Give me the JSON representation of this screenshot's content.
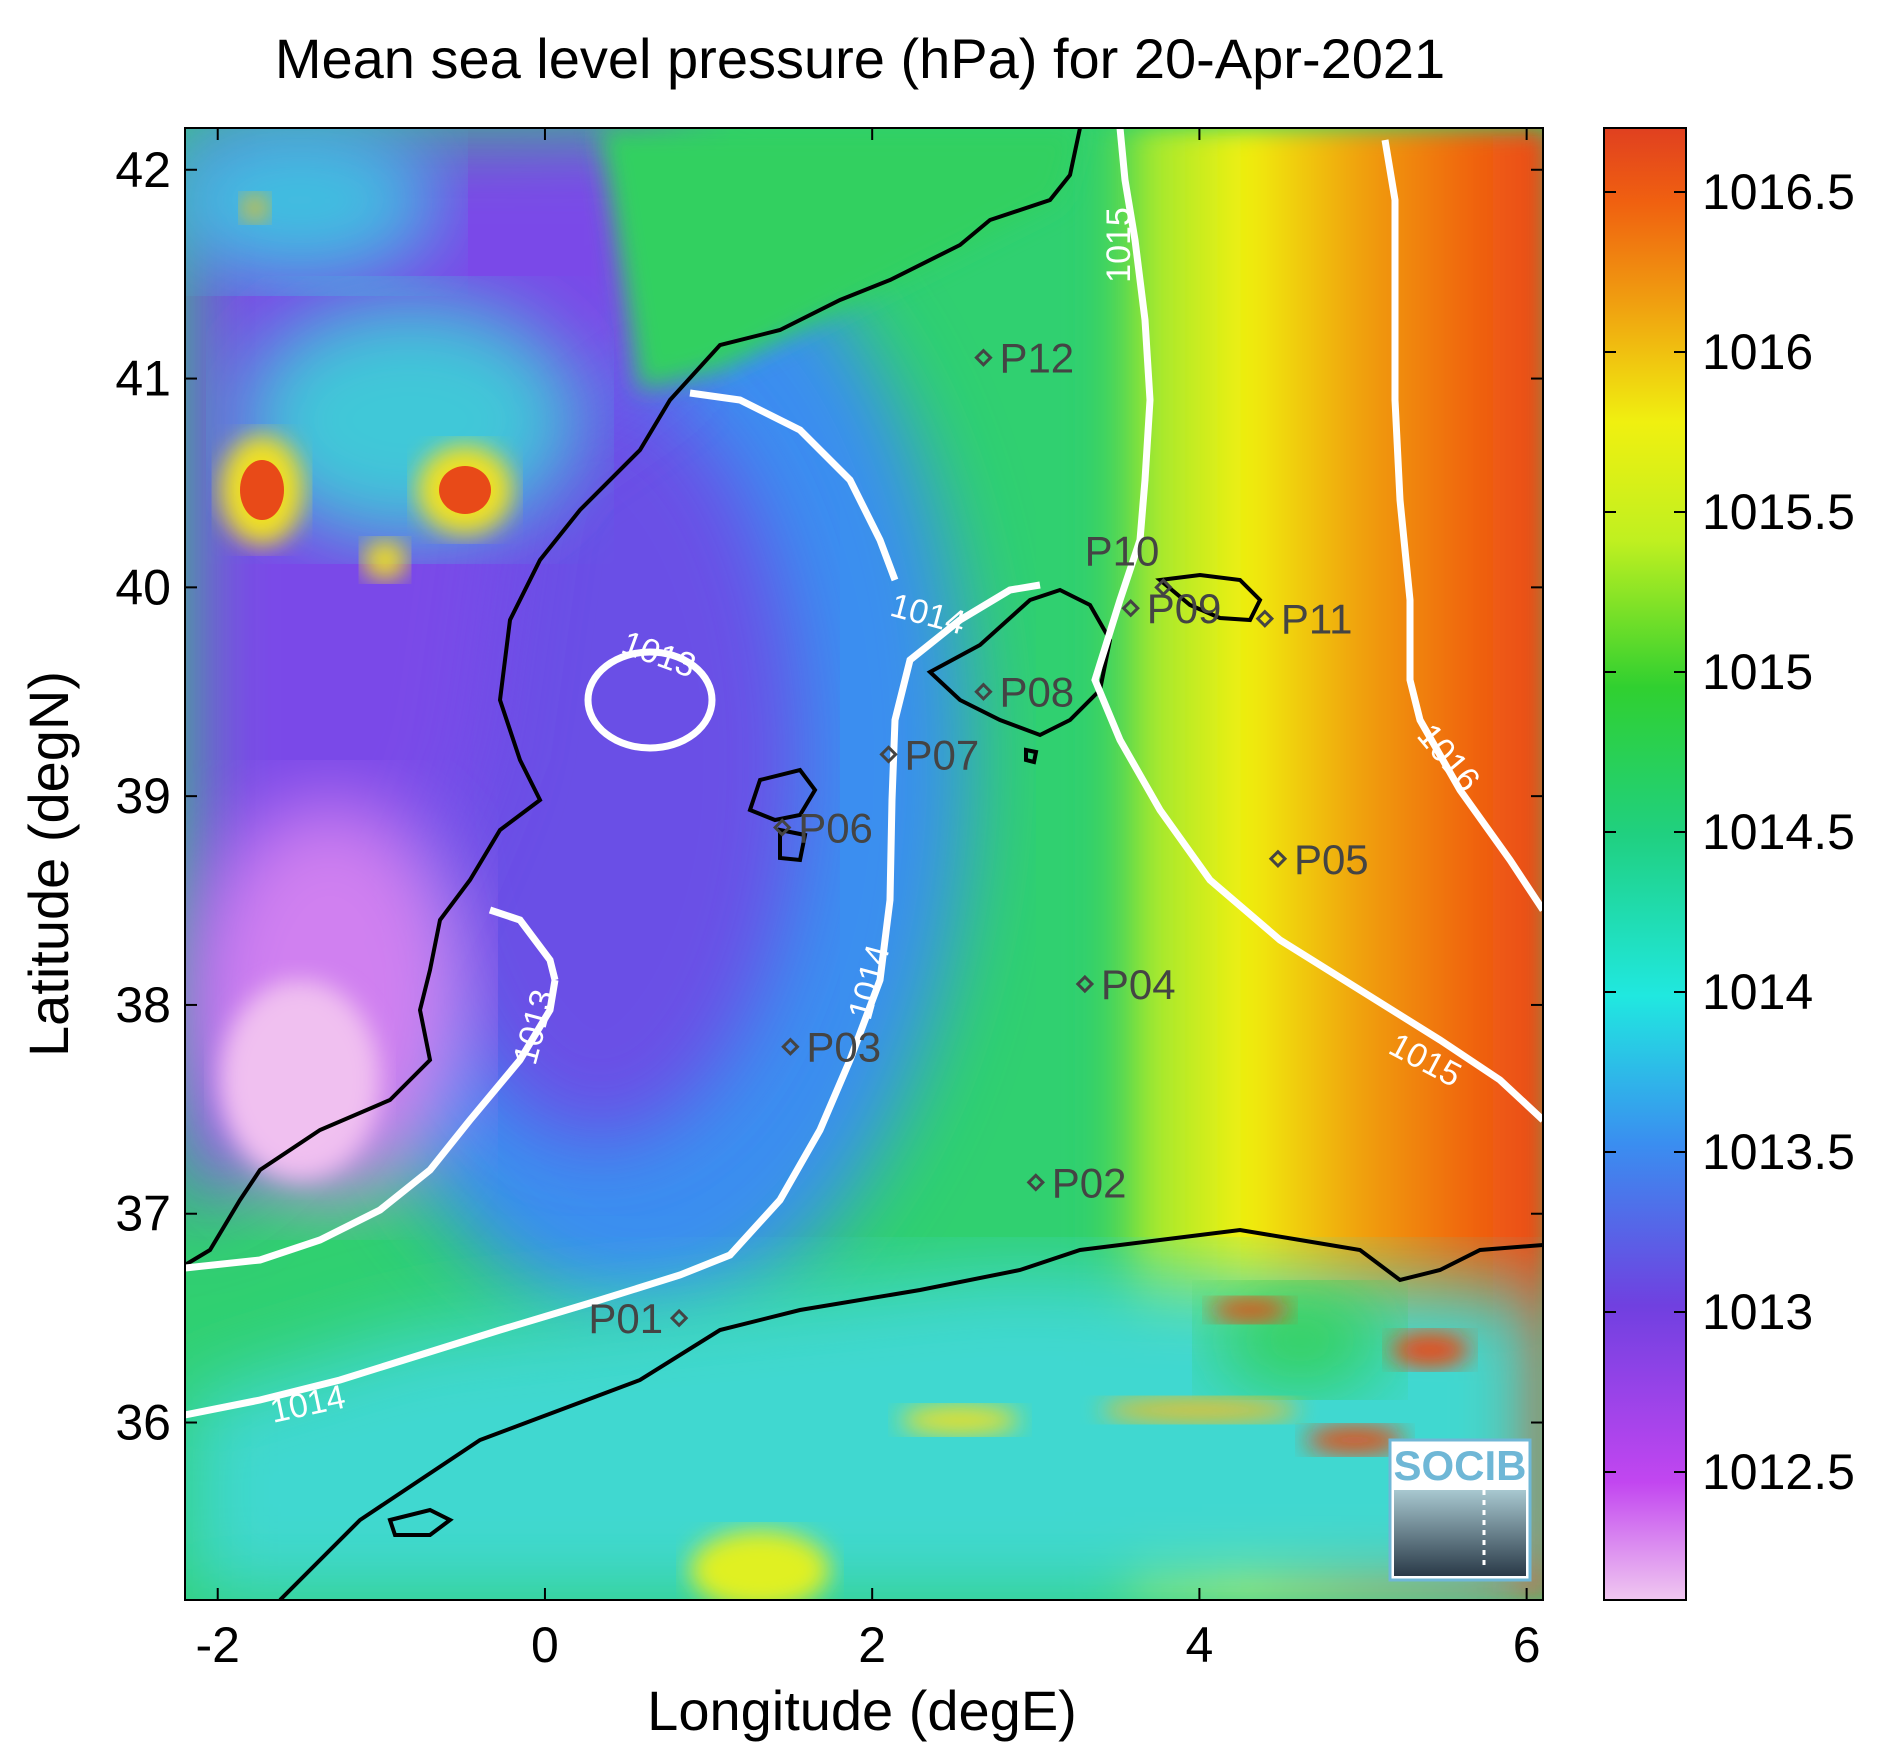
{
  "chart_data": {
    "type": "heatmap",
    "title": "Mean sea level pressure (hPa) for 20-Apr-2021",
    "xlabel": "Longitude (degE)",
    "ylabel": "Latitude (degN)",
    "xlim": [
      -2.2,
      6.1
    ],
    "ylim": [
      35.15,
      42.2
    ],
    "x_ticks": [
      "-2",
      "0",
      "2",
      "4",
      "6"
    ],
    "y_ticks": [
      "36",
      "37",
      "38",
      "39",
      "40",
      "41",
      "42"
    ],
    "colorbar": {
      "range": [
        1012.1,
        1016.7
      ],
      "ticks": [
        "1012.5",
        "1013",
        "1013.5",
        "1014",
        "1014.5",
        "1015",
        "1015.5",
        "1016",
        "1016.5"
      ],
      "colormap": [
        "#f0b4f0",
        "#c246f0",
        "#7040e0",
        "#3a8ef0",
        "#20e8e0",
        "#20d070",
        "#30d030",
        "#c0f020",
        "#f0f010",
        "#f0a010",
        "#f06010",
        "#e04020"
      ]
    },
    "contour_labels": [
      "1013",
      "1013",
      "1014",
      "1014",
      "1014",
      "1015",
      "1015",
      "1016"
    ],
    "stations": [
      {
        "name": "P01",
        "lon": 0.82,
        "lat": 36.5
      },
      {
        "name": "P02",
        "lon": 3.0,
        "lat": 37.15
      },
      {
        "name": "P03",
        "lon": 1.5,
        "lat": 37.8
      },
      {
        "name": "P04",
        "lon": 3.3,
        "lat": 38.1
      },
      {
        "name": "P05",
        "lon": 4.48,
        "lat": 38.7
      },
      {
        "name": "P06",
        "lon": 1.45,
        "lat": 38.85
      },
      {
        "name": "P07",
        "lon": 2.1,
        "lat": 39.2
      },
      {
        "name": "P08",
        "lon": 2.68,
        "lat": 39.5
      },
      {
        "name": "P09",
        "lon": 3.58,
        "lat": 39.9
      },
      {
        "name": "P10",
        "lon": 3.78,
        "lat": 40.0
      },
      {
        "name": "P11",
        "lon": 4.4,
        "lat": 39.85
      },
      {
        "name": "P12",
        "lon": 2.68,
        "lat": 41.1
      }
    ],
    "logo": "SOCIB"
  }
}
